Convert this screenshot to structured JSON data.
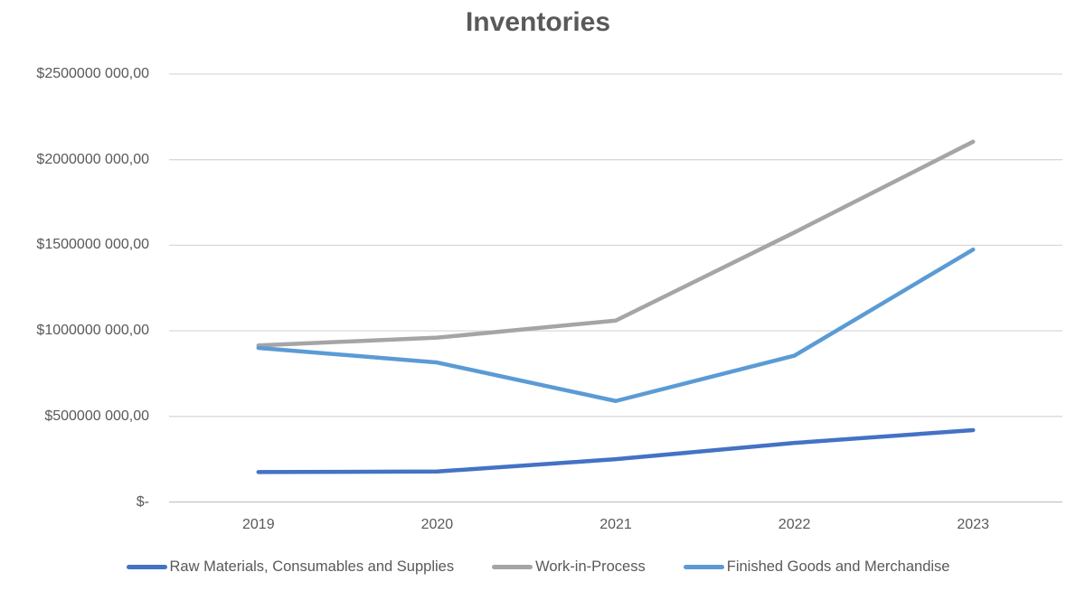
{
  "chart_data": {
    "type": "line",
    "title": "Inventories",
    "categories": [
      "2019",
      "2020",
      "2021",
      "2022",
      "2023"
    ],
    "series": [
      {
        "name": "Raw Materials, Consumables and Supplies",
        "color": "#4472C4",
        "values": [
          175000000,
          178000000,
          250000000,
          345000000,
          420000000
        ]
      },
      {
        "name": "Work-in-Process",
        "color": "#A5A5A5",
        "values": [
          915000000,
          960000000,
          1060000000,
          1575000000,
          2105000000
        ]
      },
      {
        "name": "Finished Goods and Merchandise",
        "color": "#5B9BD5",
        "values": [
          900000000,
          815000000,
          590000000,
          855000000,
          1475000000
        ]
      }
    ],
    "y_axis": {
      "min": 0,
      "max": 2500000000,
      "tick_values": [
        2500000000,
        2000000000,
        1500000000,
        1000000000,
        500000000,
        0
      ],
      "tick_labels": [
        "$2500000 000,00",
        "$2000000 000,00",
        "$1500000 000,00",
        "$1000000 000,00",
        "$500000 000,00",
        "$-"
      ]
    },
    "legend_position": "bottom",
    "grid": true,
    "colors": {
      "gridline": "#D9D9D9",
      "axis_line": "#C6C4C4",
      "text": "#595959",
      "title": "#595959",
      "background": "#FFFFFF"
    }
  }
}
